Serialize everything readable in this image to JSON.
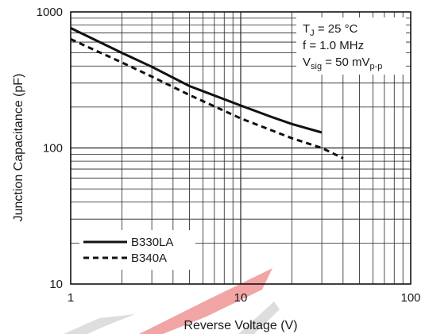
{
  "chart_data": {
    "type": "line",
    "title": "",
    "xlabel": "Reverse Voltage (V)",
    "ylabel": "Junction Capacitance (pF)",
    "x_scale": "log",
    "y_scale": "log",
    "xlim": [
      1,
      100
    ],
    "ylim": [
      10,
      1000
    ],
    "grid": true,
    "x_ticks": [
      {
        "value": 1,
        "label": "1"
      },
      {
        "value": 10,
        "label": "10"
      },
      {
        "value": 100,
        "label": "100"
      }
    ],
    "y_ticks": [
      {
        "value": 10,
        "label": "10"
      },
      {
        "value": 100,
        "label": "100"
      },
      {
        "value": 1000,
        "label": "1000"
      }
    ],
    "series": [
      {
        "name": "B330LA",
        "style": "solid",
        "color": "#111111",
        "points": [
          [
            1,
            760
          ],
          [
            2,
            500
          ],
          [
            3,
            395
          ],
          [
            5,
            285
          ],
          [
            10,
            205
          ],
          [
            15,
            170
          ],
          [
            20,
            150
          ],
          [
            30,
            130
          ]
        ]
      },
      {
        "name": "B340A",
        "style": "dashed",
        "color": "#111111",
        "points": [
          [
            1,
            630
          ],
          [
            2,
            425
          ],
          [
            3,
            335
          ],
          [
            5,
            245
          ],
          [
            10,
            165
          ],
          [
            20,
            118
          ],
          [
            30,
            100
          ],
          [
            40,
            84
          ]
        ]
      }
    ],
    "legend": {
      "placement": "bottom-left"
    },
    "annotations": {
      "tj": {
        "main": "T",
        "sub": "J",
        "rest": " = 25 °C"
      },
      "freq": "f = 1.0 MHz",
      "vsig": {
        "main": "V",
        "sub": "sig",
        "rest": " = 50 mV",
        "sub2": "p-p"
      }
    }
  },
  "watermark": {
    "colors": [
      "#e23a3a",
      "#b5b5b5"
    ]
  }
}
